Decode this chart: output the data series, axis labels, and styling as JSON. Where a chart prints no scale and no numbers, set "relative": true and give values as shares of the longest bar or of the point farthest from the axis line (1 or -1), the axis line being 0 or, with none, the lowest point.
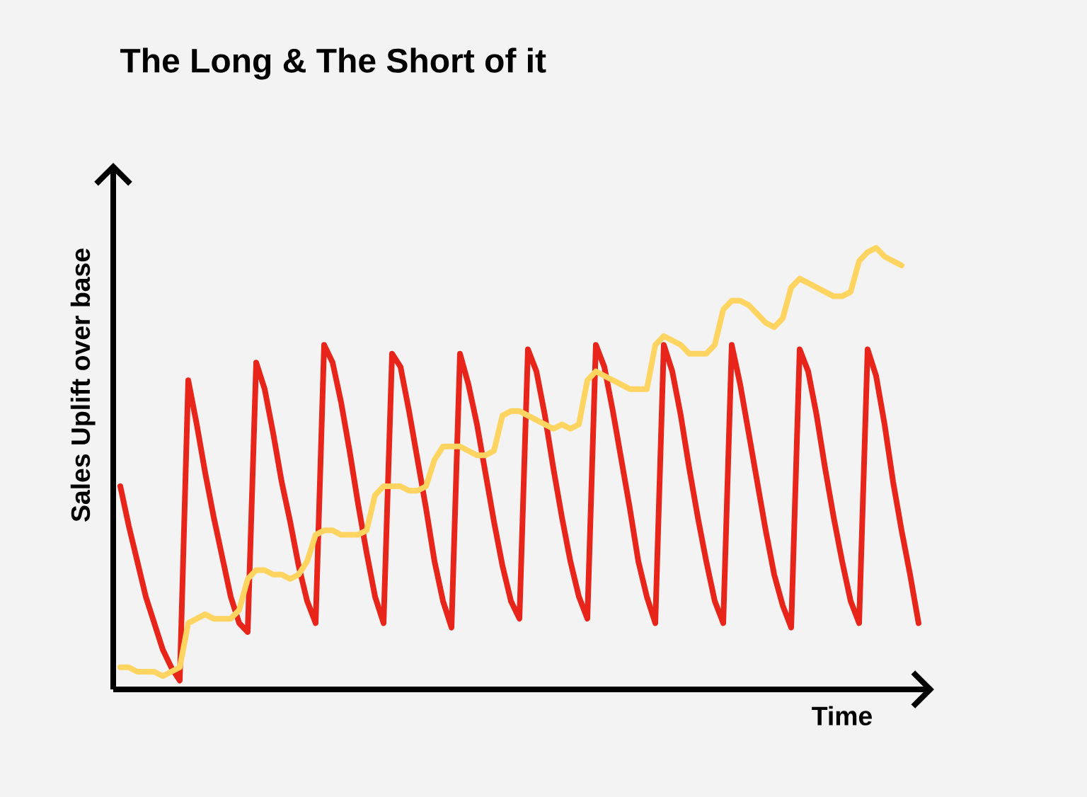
{
  "chart_data": {
    "type": "line",
    "title": "The Long & The Short of it",
    "xlabel": "Time",
    "ylabel": "Sales Uplift over base",
    "relative": true,
    "categories": [
      null,
      null,
      null,
      null,
      null,
      null,
      null,
      null,
      null,
      null,
      null,
      null,
      null,
      null,
      null,
      null,
      null,
      null,
      null,
      null,
      null,
      null,
      null,
      null,
      null,
      null,
      null,
      null,
      null,
      null,
      null,
      null,
      null,
      null,
      null,
      null,
      null,
      null,
      null,
      null,
      null,
      null,
      null,
      null,
      null,
      null,
      null,
      null,
      null,
      null,
      null,
      null,
      null,
      null,
      null,
      null,
      null,
      null,
      null,
      null,
      null,
      null,
      null,
      null,
      null,
      null,
      null,
      null,
      null,
      null,
      null,
      null,
      null,
      null,
      null,
      null,
      null,
      null,
      null,
      null,
      null,
      null,
      null,
      null,
      null,
      null,
      null,
      null,
      null,
      null,
      null,
      null,
      null,
      null,
      null
    ],
    "series": [
      {
        "color": "#e8251a",
        "values": [
          0.46,
          0.37,
          0.29,
          0.21,
          0.15,
          0.09,
          0.05,
          0.02,
          0.7,
          0.6,
          0.49,
          0.39,
          0.3,
          0.21,
          0.15,
          0.13,
          0.74,
          0.68,
          0.58,
          0.47,
          0.38,
          0.28,
          0.2,
          0.15,
          0.78,
          0.74,
          0.65,
          0.54,
          0.42,
          0.31,
          0.21,
          0.15,
          0.76,
          0.73,
          0.63,
          0.52,
          0.41,
          0.29,
          0.2,
          0.14,
          0.76,
          0.69,
          0.6,
          0.49,
          0.38,
          0.28,
          0.2,
          0.16,
          0.77,
          0.72,
          0.62,
          0.5,
          0.39,
          0.29,
          0.21,
          0.16,
          0.78,
          0.73,
          0.63,
          0.52,
          0.41,
          0.29,
          0.21,
          0.15,
          0.78,
          0.72,
          0.62,
          0.5,
          0.39,
          0.29,
          0.2,
          0.15,
          0.78,
          0.69,
          0.58,
          0.47,
          0.36,
          0.26,
          0.19,
          0.14,
          0.77,
          0.72,
          0.62,
          0.5,
          0.39,
          0.29,
          0.2,
          0.15,
          0.77,
          0.71,
          0.6,
          0.47,
          0.36,
          0.26,
          0.15
        ]
      },
      {
        "color": "#ffd460",
        "values": [
          0.05,
          0.05,
          0.04,
          0.04,
          0.04,
          0.03,
          0.04,
          0.05,
          0.15,
          0.16,
          0.17,
          0.16,
          0.16,
          0.16,
          0.18,
          0.25,
          0.27,
          0.27,
          0.26,
          0.26,
          0.25,
          0.26,
          0.29,
          0.35,
          0.36,
          0.36,
          0.35,
          0.35,
          0.35,
          0.36,
          0.44,
          0.46,
          0.46,
          0.46,
          0.45,
          0.45,
          0.46,
          0.52,
          0.55,
          0.55,
          0.55,
          0.54,
          0.53,
          0.53,
          0.54,
          0.62,
          0.63,
          0.63,
          0.62,
          0.61,
          0.6,
          0.59,
          0.6,
          0.59,
          0.6,
          0.7,
          0.72,
          0.71,
          0.7,
          0.69,
          0.68,
          0.68,
          0.68,
          0.78,
          0.8,
          0.79,
          0.78,
          0.76,
          0.76,
          0.76,
          0.78,
          0.86,
          0.88,
          0.88,
          0.87,
          0.85,
          0.83,
          0.82,
          0.84,
          0.91,
          0.93,
          0.92,
          0.91,
          0.9,
          0.89,
          0.89,
          0.9,
          0.97,
          0.99,
          1.0,
          0.98,
          0.97,
          0.96,
          null,
          null
        ]
      }
    ]
  }
}
